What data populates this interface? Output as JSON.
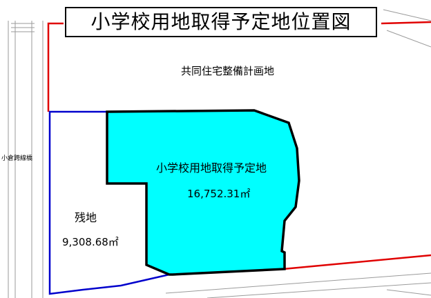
{
  "title": "小学校用地取得予定地位置図",
  "areas": {
    "housing": {
      "label": "共同住宅整備計画地"
    },
    "school": {
      "label": "小学校用地取得予定地",
      "area": "16,752.31㎡",
      "fill": "#00ffff"
    },
    "remainder": {
      "label": "残地",
      "area": "9,308.68㎡"
    }
  },
  "bridge": {
    "label": "小倉跨線橋"
  },
  "road": {
    "label": ""
  },
  "colors": {
    "red_boundary": "#e00000",
    "blue_boundary": "#0000cc",
    "outline": "#000000",
    "base_lines": "#9a9a9a"
  }
}
